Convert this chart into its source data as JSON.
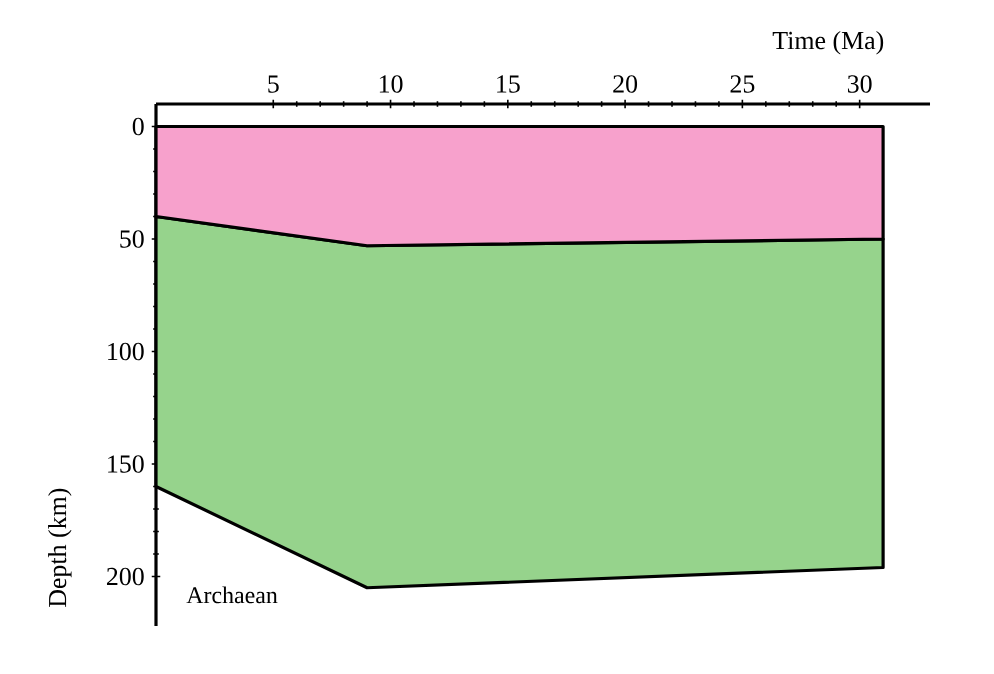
{
  "chart_data": {
    "type": "area",
    "stacked": true,
    "xlabel": "Time (Ma)",
    "ylabel": "Depth (km)",
    "x": [
      0,
      9,
      31
    ],
    "series": [
      {
        "color": "#f7a1cc",
        "values": [
          40,
          53,
          50
        ]
      },
      {
        "color": "#96d38c",
        "values": [
          120,
          152,
          146
        ]
      }
    ],
    "xlim": [
      0,
      33
    ],
    "xticks": [
      5,
      10,
      15,
      20,
      25,
      30
    ],
    "ylim": [
      222,
      -10
    ],
    "yticks": [
      0,
      50,
      100,
      150,
      200
    ],
    "annotations": [
      "Archaean"
    ],
    "grid": false
  }
}
